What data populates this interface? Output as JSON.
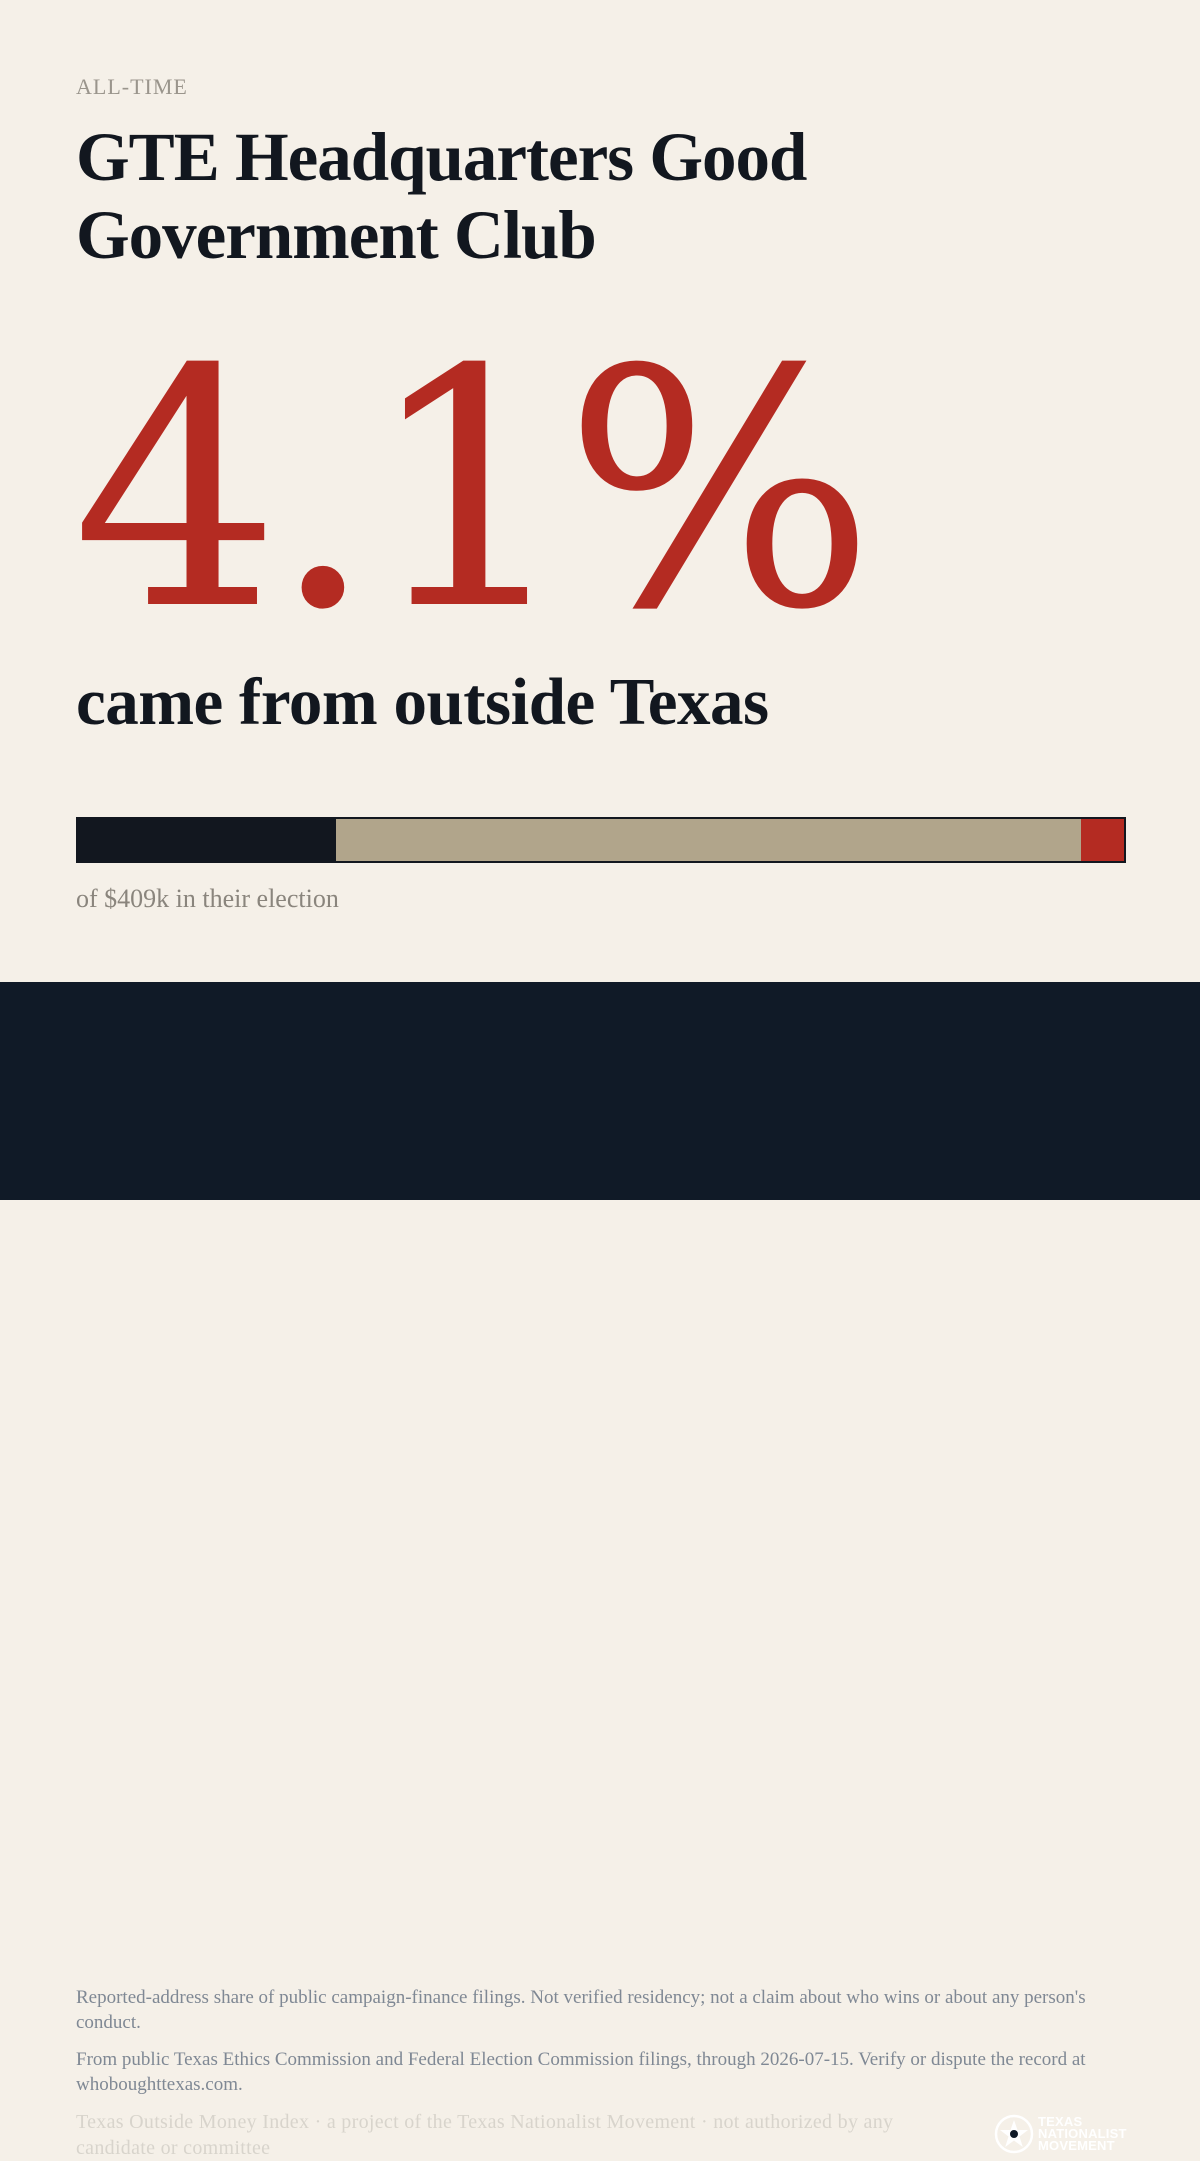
{
  "period_label": "ALL-TIME",
  "title": "GTE Headquarters Good Government Club",
  "headline_value": "4.1%",
  "headline_sub": "came from outside Texas",
  "breakdown": {
    "segments": [
      {
        "key": "dark",
        "share": 0.247,
        "color": "#12171f"
      },
      {
        "key": "tan",
        "share": 0.712,
        "color": "#b1a58b"
      },
      {
        "key": "red",
        "share": 0.041,
        "color": "#b42b22"
      }
    ],
    "caption": "of $409k in their election"
  },
  "footer": {
    "disclaimer": "Reported-address share of public campaign-finance filings. Not verified residency; not a claim about who wins or about any person's conduct.",
    "source": "From public Texas Ethics Commission and Federal Election Commission filings, through 2026-07-15. Verify or dispute the record at whoboughttexas.com.",
    "credit": "Texas Outside Money Index · a project of the Texas Nationalist Movement · not authorized by any candidate or committee",
    "logo_lines": [
      "TEXAS",
      "NATIONALIST",
      "MOVEMENT"
    ]
  },
  "colors": {
    "background": "#f5f0e8",
    "ink": "#12171f",
    "accent_red": "#b42b22",
    "tan": "#b1a58b",
    "footer_bg": "#101a27"
  }
}
